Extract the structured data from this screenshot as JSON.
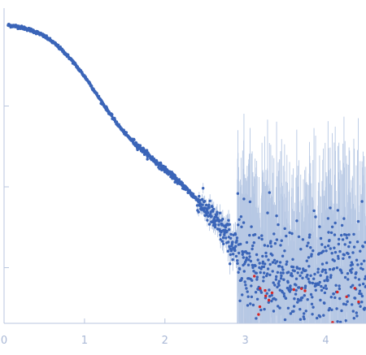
{
  "chart_data": {
    "type": "scatter",
    "title": "",
    "xlabel": "",
    "ylabel": "",
    "xlim": [
      0,
      4.5
    ],
    "y_scale": "log",
    "x_ticks": [
      0,
      1,
      2,
      3,
      4
    ],
    "x_tick_labels": [
      "0",
      "1",
      "2",
      "3",
      "4"
    ],
    "y_ticks_decades_from_top": [
      1,
      2,
      3
    ],
    "y_tick_labels": [],
    "grid": false,
    "legend": "none",
    "series": [
      {
        "role": "measured",
        "color": "#3b65b8",
        "errorbar_color": "#b7c8e4",
        "points": [
          [
            0.05,
            1.0
          ],
          [
            0.15,
            0.97
          ],
          [
            0.25,
            0.92
          ],
          [
            0.35,
            0.86
          ],
          [
            0.45,
            0.78
          ],
          [
            0.55,
            0.68
          ],
          [
            0.65,
            0.57
          ],
          [
            0.75,
            0.46
          ],
          [
            0.85,
            0.36
          ],
          [
            0.95,
            0.27
          ],
          [
            1.05,
            0.2
          ],
          [
            1.15,
            0.14
          ],
          [
            1.25,
            0.1
          ],
          [
            1.35,
            0.072
          ],
          [
            1.45,
            0.053
          ],
          [
            1.55,
            0.041
          ],
          [
            1.65,
            0.033
          ],
          [
            1.75,
            0.027
          ],
          [
            1.85,
            0.022
          ],
          [
            1.95,
            0.018
          ],
          [
            2.05,
            0.015
          ],
          [
            2.15,
            0.012
          ],
          [
            2.25,
            0.0098
          ],
          [
            2.35,
            0.0078
          ],
          [
            2.45,
            0.0061
          ],
          [
            2.55,
            0.0047
          ],
          [
            2.65,
            0.0035
          ],
          [
            2.75,
            0.0026
          ],
          [
            2.85,
            0.0019
          ],
          [
            2.95,
            0.0014
          ],
          [
            3.05,
            0.0011
          ],
          [
            3.15,
            0.00092
          ],
          [
            3.25,
            0.0008
          ],
          [
            3.35,
            0.00072
          ],
          [
            3.45,
            0.00068
          ],
          [
            3.55,
            0.00066
          ],
          [
            3.65,
            0.00065
          ],
          [
            3.75,
            0.00064
          ],
          [
            3.85,
            0.00064
          ],
          [
            3.95,
            0.00064
          ],
          [
            4.05,
            0.00065
          ],
          [
            4.15,
            0.00066
          ],
          [
            4.25,
            0.00067
          ],
          [
            4.35,
            0.00069
          ],
          [
            4.45,
            0.00071
          ]
        ]
      },
      {
        "role": "outliers",
        "color": "#d62728",
        "x_range": [
          3.1,
          4.5
        ]
      }
    ]
  }
}
